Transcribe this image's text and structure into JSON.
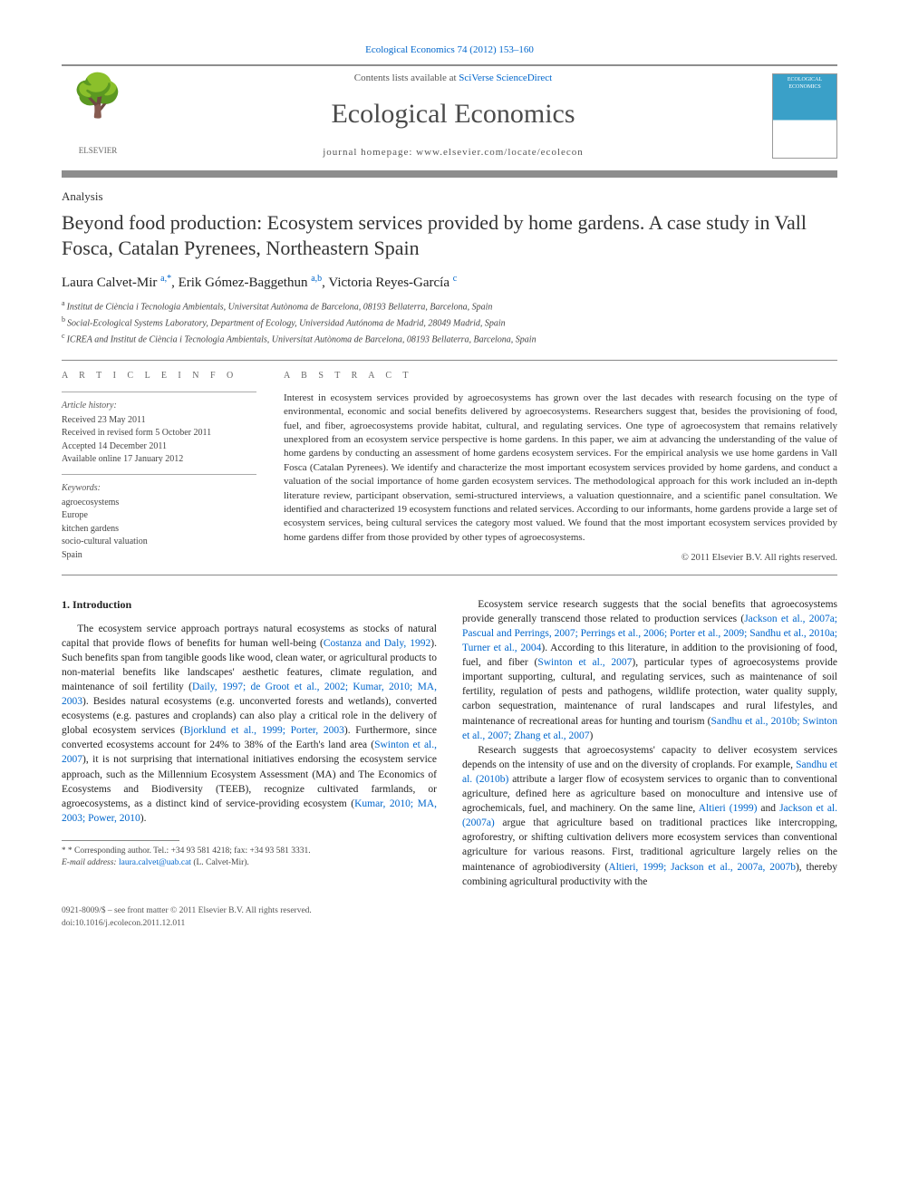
{
  "colors": {
    "link": "#0066cc",
    "rule": "#8d8d8d",
    "text": "#222222",
    "muted": "#555555"
  },
  "top_journal_ref": "Ecological Economics 74 (2012) 153–160",
  "masthead": {
    "elsevier": "ELSEVIER",
    "contents_pre": "Contents lists available at ",
    "contents_link": "SciVerse ScienceDirect",
    "journal_name": "Ecological Economics",
    "homepage": "journal homepage: www.elsevier.com/locate/ecolecon",
    "cover_label": "ECOLOGICAL ECONOMICS"
  },
  "article": {
    "section": "Analysis",
    "title": "Beyond food production: Ecosystem services provided by home gardens. A case study in Vall Fosca, Catalan Pyrenees, Northeastern Spain",
    "authors_html": "Laura Calvet-Mir <sup>a,*</sup>, Erik Gómez-Baggethun <sup>a,b</sup>, Victoria Reyes-García <sup>c</sup>",
    "authors": [
      {
        "name": "Laura Calvet-Mir",
        "marks": "a,*"
      },
      {
        "name": "Erik Gómez-Baggethun",
        "marks": "a,b"
      },
      {
        "name": "Victoria Reyes-García",
        "marks": "c"
      }
    ],
    "affiliations": [
      {
        "mark": "a",
        "text": "Institut de Ciència i Tecnologia Ambientals, Universitat Autònoma de Barcelona, 08193 Bellaterra, Barcelona, Spain"
      },
      {
        "mark": "b",
        "text": "Social-Ecological Systems Laboratory, Department of Ecology, Universidad Autónoma de Madrid, 28049 Madrid, Spain"
      },
      {
        "mark": "c",
        "text": "ICREA and Institut de Ciència i Tecnologia Ambientals, Universitat Autònoma de Barcelona, 08193 Bellaterra, Barcelona, Spain"
      }
    ]
  },
  "info": {
    "heading": "A R T I C L E   I N F O",
    "history_label": "Article history:",
    "history": [
      "Received 23 May 2011",
      "Received in revised form 5 October 2011",
      "Accepted 14 December 2011",
      "Available online 17 January 2012"
    ],
    "keywords_label": "Keywords:",
    "keywords": [
      "agroecosystems",
      "Europe",
      "kitchen gardens",
      "socio-cultural valuation",
      "Spain"
    ]
  },
  "abstract": {
    "heading": "A B S T R A C T",
    "text": "Interest in ecosystem services provided by agroecosystems has grown over the last decades with research focusing on the type of environmental, economic and social benefits delivered by agroecosystems. Researchers suggest that, besides the provisioning of food, fuel, and fiber, agroecosystems provide habitat, cultural, and regulating services. One type of agroecosystem that remains relatively unexplored from an ecosystem service perspective is home gardens. In this paper, we aim at advancing the understanding of the value of home gardens by conducting an assessment of home gardens ecosystem services. For the empirical analysis we use home gardens in Vall Fosca (Catalan Pyrenees). We identify and characterize the most important ecosystem services provided by home gardens, and conduct a valuation of the social importance of home garden ecosystem services. The methodological approach for this work included an in-depth literature review, participant observation, semi-structured interviews, a valuation questionnaire, and a scientific panel consultation. We identified and characterized 19 ecosystem functions and related services. According to our informants, home gardens provide a large set of ecosystem services, being cultural services the category most valued. We found that the most important ecosystem services provided by home gardens differ from those provided by other types of agroecosystems.",
    "copyright": "© 2011 Elsevier B.V. All rights reserved."
  },
  "body": {
    "section_heading": "1. Introduction",
    "left_col": [
      {
        "type": "p",
        "runs": [
          {
            "t": "The ecosystem service approach portrays natural ecosystems as stocks of natural capital that provide flows of benefits for human well-being ("
          },
          {
            "t": "Costanza and Daly, 1992",
            "link": true
          },
          {
            "t": "). Such benefits span from tangible goods like wood, clean water, or agricultural products to non-material benefits like landscapes' aesthetic features, climate regulation, and maintenance of soil fertility ("
          },
          {
            "t": "Daily, 1997; de Groot et al., 2002; Kumar, 2010; MA, 2003",
            "link": true
          },
          {
            "t": "). Besides natural ecosystems (e.g. unconverted forests and wetlands), converted ecosystems (e.g. pastures and croplands) can also play a critical role in the delivery of global ecosystem services ("
          },
          {
            "t": "Bjorklund et al., 1999; Porter, 2003",
            "link": true
          },
          {
            "t": "). Furthermore, since converted ecosystems account for 24% to 38% of the Earth's land area ("
          },
          {
            "t": "Swinton et al., 2007",
            "link": true
          },
          {
            "t": "), it is not surprising that international initiatives endorsing the ecosystem service approach, such as the Millennium Ecosystem Assessment (MA) and The Economics of Ecosystems and Biodiversity (TEEB), recognize cultivated farmlands, or agroecosystems, as a distinct kind of service-providing ecosystem ("
          },
          {
            "t": "Kumar, 2010; MA, 2003; Power, 2010",
            "link": true
          },
          {
            "t": ")."
          }
        ]
      }
    ],
    "right_col": [
      {
        "type": "p",
        "runs": [
          {
            "t": "Ecosystem service research suggests that the social benefits that agroecosystems provide generally transcend those related to production services ("
          },
          {
            "t": "Jackson et al., 2007a; Pascual and Perrings, 2007; Perrings et al., 2006; Porter et al., 2009; Sandhu et al., 2010a; Turner et al., 2004",
            "link": true
          },
          {
            "t": "). According to this literature, in addition to the provisioning of food, fuel, and fiber ("
          },
          {
            "t": "Swinton et al., 2007",
            "link": true
          },
          {
            "t": "), particular types of agroecosystems provide important supporting, cultural, and regulating services, such as maintenance of soil fertility, regulation of pests and pathogens, wildlife protection, water quality supply, carbon sequestration, maintenance of rural landscapes and rural lifestyles, and maintenance of recreational areas for hunting and tourism ("
          },
          {
            "t": "Sandhu et al., 2010b; Swinton et al., 2007; Zhang et al., 2007",
            "link": true
          },
          {
            "t": ")"
          }
        ]
      },
      {
        "type": "p",
        "runs": [
          {
            "t": "Research suggests that agroecosystems' capacity to deliver ecosystem services depends on the intensity of use and on the diversity of croplands. For example, "
          },
          {
            "t": "Sandhu et al. (2010b)",
            "link": true
          },
          {
            "t": " attribute a larger flow of ecosystem services to organic than to conventional agriculture, defined here as agriculture based on monoculture and intensive use of agrochemicals, fuel, and machinery. On the same line, "
          },
          {
            "t": "Altieri (1999)",
            "link": true
          },
          {
            "t": " and "
          },
          {
            "t": "Jackson et al. (2007a)",
            "link": true
          },
          {
            "t": " argue that agriculture based on traditional practices like intercropping, agroforestry, or shifting cultivation delivers more ecosystem services than conventional agriculture for various reasons. First, traditional agriculture largely relies on the maintenance of agrobiodiversity ("
          },
          {
            "t": "Altieri, 1999; Jackson et al., 2007a, 2007b",
            "link": true
          },
          {
            "t": "), thereby combining agricultural productivity with the"
          }
        ]
      }
    ]
  },
  "footnote": {
    "line1_pre": "* Corresponding author. Tel.: ",
    "tel": "+34 93 581 4218",
    "line1_mid": "; fax: ",
    "fax": "+34 93 581 3331.",
    "line2_label": "E-mail address: ",
    "email": "laura.calvet@uab.cat",
    "line2_post": " (L. Calvet-Mir)."
  },
  "footer": {
    "line1": "0921-8009/$ – see front matter © 2011 Elsevier B.V. All rights reserved.",
    "line2": "doi:10.1016/j.ecolecon.2011.12.011"
  }
}
